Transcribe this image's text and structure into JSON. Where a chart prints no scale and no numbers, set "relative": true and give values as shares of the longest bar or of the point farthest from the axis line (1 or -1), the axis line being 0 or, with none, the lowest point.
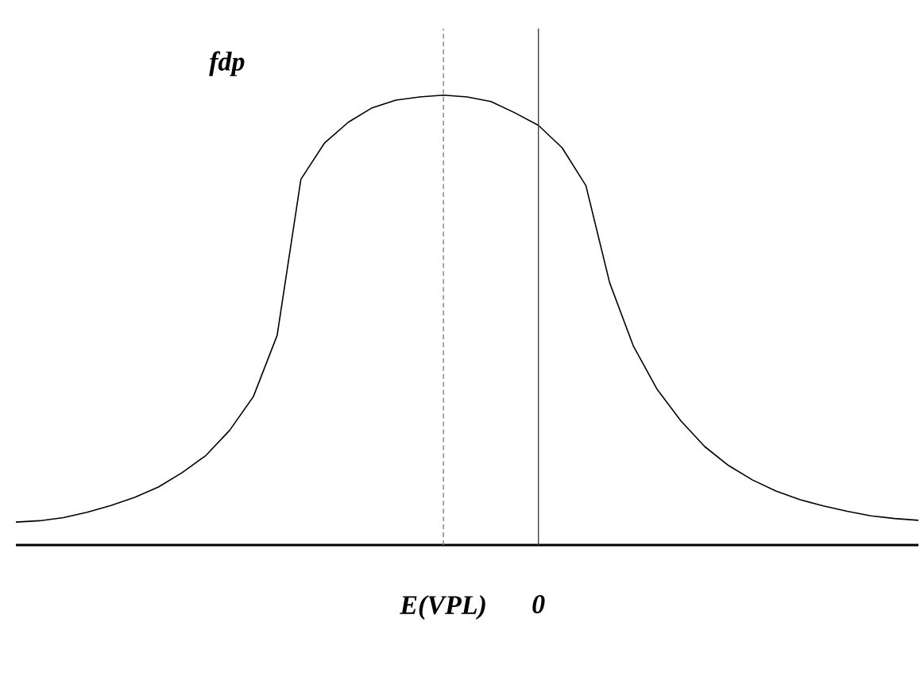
{
  "chart_data": {
    "type": "line",
    "ylabel": "fdp",
    "relative": true,
    "categories": [
      null,
      null,
      null,
      null,
      null,
      null,
      null,
      null,
      null,
      null,
      null,
      null,
      null,
      null,
      null,
      null,
      null,
      null,
      "E(VPL)",
      null,
      null,
      null,
      "0",
      null,
      null,
      null,
      null,
      null,
      null,
      null,
      null,
      null,
      null,
      null,
      null,
      null,
      null,
      null,
      null
    ],
    "series": [
      {
        "color": "#000000",
        "values": [
          0.051,
          0.054,
          0.061,
          0.073,
          0.088,
          0.106,
          0.129,
          0.161,
          0.199,
          0.255,
          0.33,
          0.466,
          0.813,
          0.894,
          0.94,
          0.972,
          0.989,
          0.996,
          1.0,
          0.996,
          0.986,
          0.961,
          0.933,
          0.883,
          0.799,
          0.583,
          0.442,
          0.346,
          0.276,
          0.219,
          0.177,
          0.145,
          0.12,
          0.101,
          0.087,
          0.075,
          0.065,
          0.059,
          0.055
        ]
      }
    ],
    "ref_lines": [
      {
        "axis": "x",
        "value": "E(VPL)",
        "color": "#808080",
        "line_style": "dashed"
      },
      {
        "axis": "x",
        "value": "0",
        "color": "#404040",
        "line_style": "solid"
      }
    ],
    "marker": "none",
    "line_style": "solid"
  }
}
